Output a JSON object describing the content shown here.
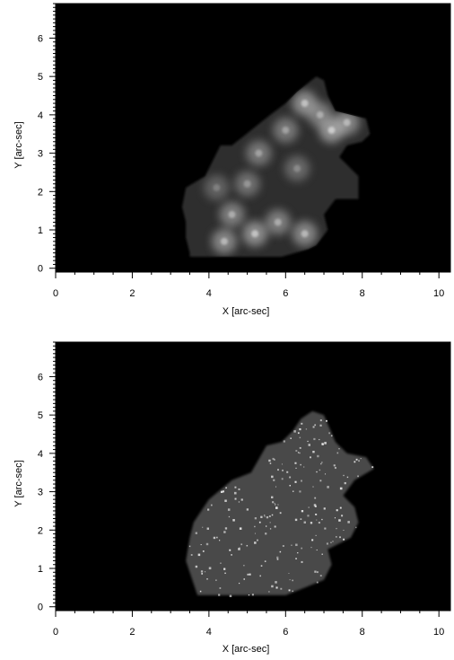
{
  "chart_data": [
    {
      "type": "heatmap",
      "panel": "top",
      "xlabel": "X [arc-sec]",
      "ylabel": "Y [arc-sec]",
      "xlim": [
        0,
        10.3
      ],
      "ylim": [
        -0.1,
        6.9
      ],
      "xticks": [
        0,
        2,
        4,
        6,
        8,
        10
      ],
      "yticks": [
        0,
        1,
        2,
        3,
        4,
        5,
        6
      ],
      "grid": false,
      "colormap": "grayscale",
      "background_color": "#000000",
      "region_color": "#2e2e2e",
      "region_outline": [
        [
          3.5,
          0.3
        ],
        [
          5.9,
          0.3
        ],
        [
          6.6,
          0.5
        ],
        [
          6.8,
          0.6
        ],
        [
          7.1,
          1.0
        ],
        [
          7.0,
          1.4
        ],
        [
          7.3,
          1.8
        ],
        [
          7.9,
          1.8
        ],
        [
          7.9,
          2.4
        ],
        [
          7.6,
          2.7
        ],
        [
          7.4,
          2.9
        ],
        [
          7.6,
          3.2
        ],
        [
          8.0,
          3.3
        ],
        [
          8.2,
          3.5
        ],
        [
          8.1,
          3.9
        ],
        [
          7.7,
          4.0
        ],
        [
          7.3,
          4.1
        ],
        [
          7.1,
          4.5
        ],
        [
          7.0,
          4.9
        ],
        [
          6.8,
          5.0
        ],
        [
          6.3,
          4.6
        ],
        [
          6.0,
          4.3
        ],
        [
          5.6,
          4.0
        ],
        [
          5.1,
          3.6
        ],
        [
          4.6,
          3.2
        ],
        [
          4.3,
          3.2
        ],
        [
          3.9,
          2.4
        ],
        [
          3.4,
          2.1
        ],
        [
          3.3,
          1.6
        ],
        [
          3.4,
          1.2
        ],
        [
          3.4,
          0.8
        ],
        [
          3.5,
          0.4
        ]
      ],
      "bright_features": [
        {
          "x": 6.5,
          "y": 4.3,
          "intensity": 0.85
        },
        {
          "x": 7.2,
          "y": 3.6,
          "intensity": 0.9
        },
        {
          "x": 7.6,
          "y": 3.8,
          "intensity": 0.8
        },
        {
          "x": 6.9,
          "y": 4.0,
          "intensity": 0.75
        },
        {
          "x": 5.3,
          "y": 3.0,
          "intensity": 0.7
        },
        {
          "x": 5.0,
          "y": 2.2,
          "intensity": 0.65
        },
        {
          "x": 4.6,
          "y": 1.4,
          "intensity": 0.75
        },
        {
          "x": 4.4,
          "y": 0.7,
          "intensity": 0.8
        },
        {
          "x": 5.2,
          "y": 0.9,
          "intensity": 0.85
        },
        {
          "x": 5.8,
          "y": 1.2,
          "intensity": 0.75
        },
        {
          "x": 6.5,
          "y": 0.9,
          "intensity": 0.8
        },
        {
          "x": 6.3,
          "y": 2.6,
          "intensity": 0.6
        },
        {
          "x": 4.2,
          "y": 2.1,
          "intensity": 0.55
        },
        {
          "x": 6.0,
          "y": 3.6,
          "intensity": 0.7
        }
      ]
    },
    {
      "type": "heatmap",
      "panel": "bottom",
      "xlabel": "X [arc-sec]",
      "ylabel": "Y [arc-sec]",
      "xlim": [
        0,
        10.3
      ],
      "ylim": [
        -0.1,
        6.9
      ],
      "xticks": [
        0,
        2,
        4,
        6,
        8,
        10
      ],
      "yticks": [
        0,
        1,
        2,
        3,
        4,
        5,
        6
      ],
      "grid": false,
      "colormap": "grayscale",
      "background_color": "#000000",
      "region_color": "#484848",
      "region_outline": [
        [
          3.7,
          0.3
        ],
        [
          6.0,
          0.3
        ],
        [
          6.5,
          0.5
        ],
        [
          7.0,
          0.7
        ],
        [
          7.2,
          1.1
        ],
        [
          7.1,
          1.5
        ],
        [
          7.7,
          1.8
        ],
        [
          7.9,
          2.2
        ],
        [
          7.8,
          2.6
        ],
        [
          7.5,
          2.9
        ],
        [
          7.8,
          3.3
        ],
        [
          8.3,
          3.6
        ],
        [
          8.1,
          3.9
        ],
        [
          7.6,
          4.0
        ],
        [
          7.3,
          4.3
        ],
        [
          7.0,
          5.0
        ],
        [
          6.7,
          5.1
        ],
        [
          6.4,
          4.9
        ],
        [
          6.2,
          4.6
        ],
        [
          5.9,
          4.3
        ],
        [
          5.5,
          4.2
        ],
        [
          5.1,
          3.5
        ],
        [
          4.6,
          3.3
        ],
        [
          4.0,
          2.8
        ],
        [
          3.6,
          2.2
        ],
        [
          3.5,
          1.8
        ],
        [
          3.4,
          1.2
        ],
        [
          3.6,
          0.6
        ],
        [
          3.7,
          0.3
        ]
      ],
      "speckle_count": 220,
      "speckle_color": "#e8e8e8"
    }
  ]
}
